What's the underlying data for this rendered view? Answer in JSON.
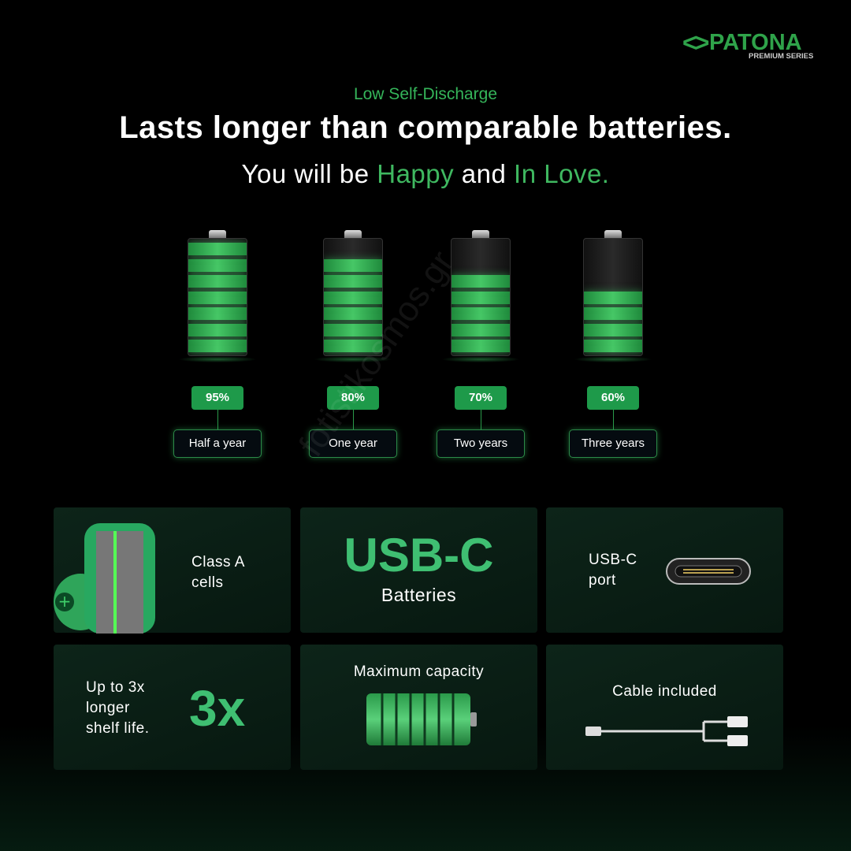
{
  "brand": {
    "logo_text": "PATONA",
    "logo_subtitle": "PREMIUM SERIES",
    "accent": "#2fa34a"
  },
  "header": {
    "eyebrow": "Low Self-Discharge",
    "headline": "Lasts longer than comparable batteries.",
    "tagline_parts": [
      "You will be ",
      "Happy",
      " and ",
      "In Love."
    ]
  },
  "batteries": [
    {
      "percent": "95%",
      "period": "Half a year",
      "segments_filled": 7
    },
    {
      "percent": "80%",
      "period": "One year",
      "segments_filled": 6
    },
    {
      "percent": "70%",
      "period": "Two years",
      "segments_filled": 5
    },
    {
      "percent": "60%",
      "period": "Three years",
      "segments_filled": 4
    }
  ],
  "watermark": "fotistikosmos.gr",
  "features": {
    "class_a": {
      "line1": "Class A",
      "line2": "cells"
    },
    "usbc": {
      "big": "USB-C",
      "sub": "Batteries"
    },
    "port": {
      "line1": "USB-C",
      "line2": "port"
    },
    "shelf": {
      "line1": "Up to 3x",
      "line2": "longer",
      "line3": "shelf life.",
      "big": "3x"
    },
    "capacity": {
      "title": "Maximum capacity"
    },
    "cable": {
      "title": "Cable included"
    }
  }
}
